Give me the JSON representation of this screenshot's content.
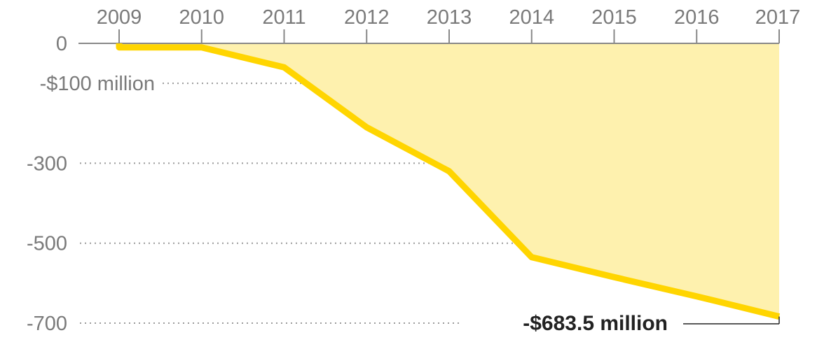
{
  "chart_data": {
    "type": "area",
    "title": "",
    "xlabel": "",
    "ylabel": "",
    "x": [
      2009,
      2010,
      2011,
      2012,
      2013,
      2014,
      2015,
      2016,
      2017
    ],
    "series": [
      {
        "values": [
          -10,
          -10,
          -60,
          -210,
          -320,
          -535,
          -585,
          -633,
          -683.5
        ]
      }
    ],
    "x_ticks": [
      "2009",
      "2010",
      "2011",
      "2012",
      "2013",
      "2014",
      "2015",
      "2016",
      "2017"
    ],
    "y_ticks": [
      {
        "value": 0,
        "label": "0"
      },
      {
        "value": -100,
        "label": "-$100 million"
      },
      {
        "value": -300,
        "label": "-300"
      },
      {
        "value": -500,
        "label": "-500"
      },
      {
        "value": -700,
        "label": "-700"
      }
    ],
    "xlim": [
      2009,
      2017
    ],
    "ylim": [
      -700,
      0
    ],
    "grid": true,
    "annotation": {
      "text": "-$683.5 million",
      "x": 2017,
      "y": -683.5
    },
    "colors": {
      "line": "#ffd500",
      "fill": "#fef1ae",
      "grid": "#9a9a9a",
      "axis": "#888888",
      "tick_text": "#7a7a7a",
      "annotation_text": "#222222"
    }
  }
}
